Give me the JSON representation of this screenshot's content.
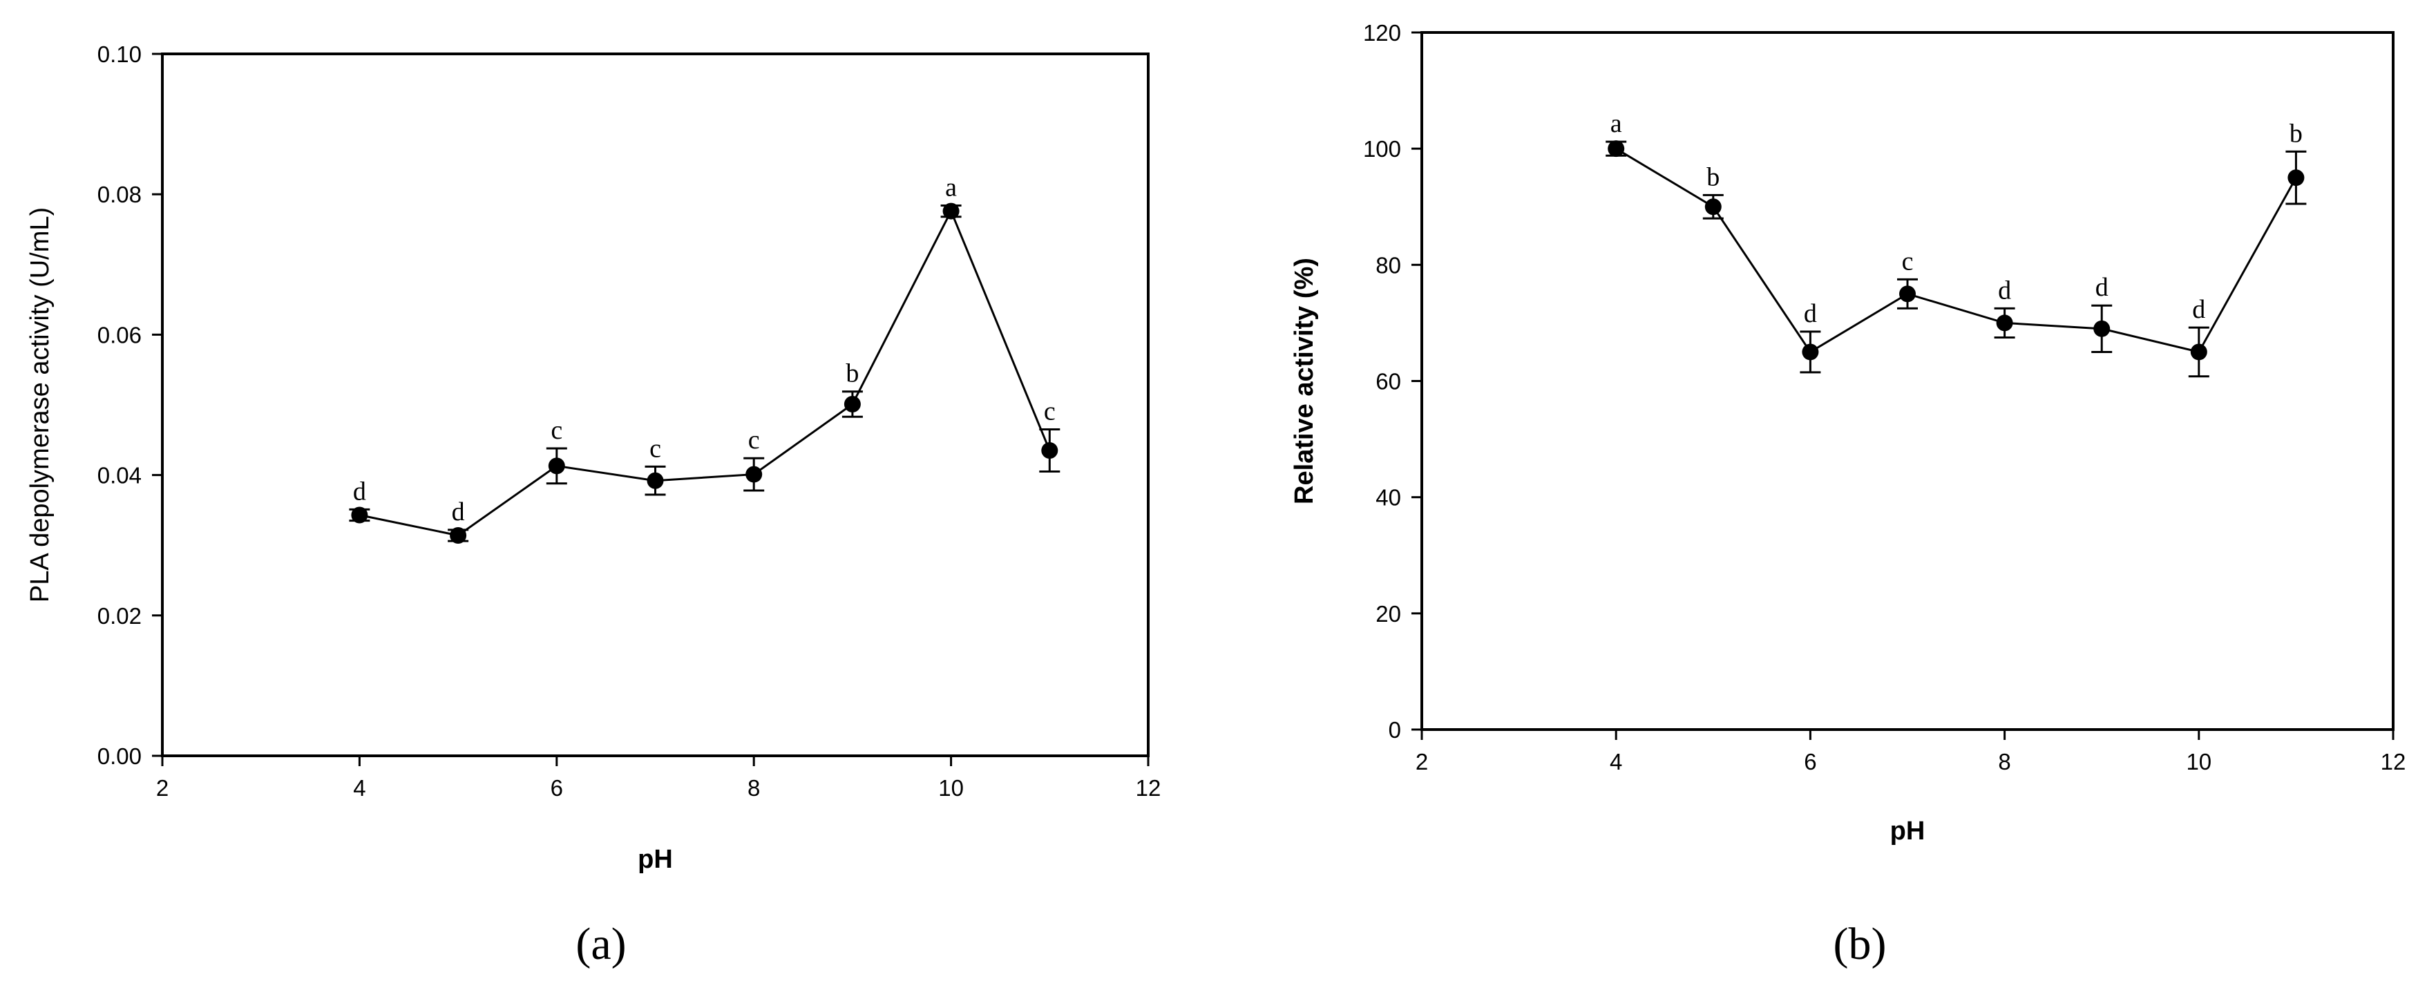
{
  "chart_data": [
    {
      "type": "line",
      "panel_label": "(a)",
      "xlabel": "pH",
      "ylabel": "PLA depolymerase activity (U/mL)",
      "xlim": [
        2,
        12
      ],
      "ylim": [
        0,
        0.1
      ],
      "xticks": [
        "2",
        "4",
        "6",
        "8",
        "10",
        "12"
      ],
      "yticks": [
        "0.00",
        "0.02",
        "0.04",
        "0.06",
        "0.08",
        "0.10"
      ],
      "series": [
        {
          "x": [
            4,
            5,
            6,
            7,
            8,
            9,
            10,
            11
          ],
          "y": [
            0.0343,
            0.0314,
            0.0413,
            0.0392,
            0.0401,
            0.0501,
            0.0776,
            0.0435
          ],
          "error": [
            0.0008,
            0.0008,
            0.0025,
            0.002,
            0.0023,
            0.0018,
            0.0008,
            0.003
          ],
          "letters": [
            "d",
            "d",
            "c",
            "c",
            "c",
            "b",
            "a",
            "c"
          ]
        }
      ],
      "grid": false
    },
    {
      "type": "line",
      "panel_label": "(b)",
      "xlabel": "pH",
      "ylabel": "Relative activity (%)",
      "xlim": [
        2,
        12
      ],
      "ylim": [
        0,
        120
      ],
      "xticks": [
        "2",
        "4",
        "6",
        "8",
        "10",
        "12"
      ],
      "yticks": [
        "0",
        "20",
        "40",
        "60",
        "80",
        "100",
        "120"
      ],
      "series": [
        {
          "x": [
            4,
            5,
            6,
            7,
            8,
            9,
            10,
            11
          ],
          "y": [
            100,
            90,
            65,
            75,
            70,
            69,
            65,
            95
          ],
          "error": [
            1.2,
            2.0,
            3.5,
            2.5,
            2.5,
            4.0,
            4.2,
            4.5
          ],
          "letters": [
            "a",
            "b",
            "d",
            "c",
            "d",
            "d",
            "d",
            "b"
          ]
        }
      ],
      "grid": false
    }
  ]
}
